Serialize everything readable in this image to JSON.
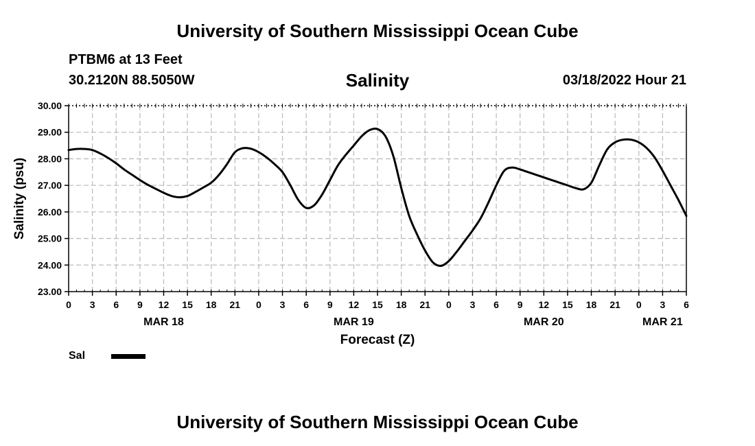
{
  "header": {
    "title": "University of Southern Mississippi Ocean Cube",
    "station": "PTBM6 at 13 Feet",
    "coords": "30.2120N  88.5050W",
    "subtitle": "Salinity",
    "datetime": "03/18/2022 Hour 21"
  },
  "footer": {
    "title": "University of Southern Mississippi Ocean Cube"
  },
  "legend": {
    "label": "Sal",
    "color": "#000000"
  },
  "chart_data": {
    "type": "line",
    "title": "Salinity",
    "xlabel": "Forecast (Z)",
    "ylabel": "Salinity (psu)",
    "ylim": [
      23,
      30
    ],
    "xlim": [
      0,
      78
    ],
    "x_unit": "hours from 00Z MAR 18",
    "yticks": [
      "23.00",
      "24.00",
      "25.00",
      "26.00",
      "27.00",
      "28.00",
      "29.00",
      "30.00"
    ],
    "xticks": [
      "0",
      "3",
      "6",
      "9",
      "12",
      "15",
      "18",
      "21",
      "0",
      "3",
      "6",
      "9",
      "12",
      "15",
      "18",
      "21",
      "0",
      "3",
      "6",
      "9",
      "12",
      "15",
      "18",
      "21",
      "0",
      "3",
      "6"
    ],
    "day_labels": [
      {
        "label": "MAR 18",
        "hour": 12
      },
      {
        "label": "MAR 19",
        "hour": 36
      },
      {
        "label": "MAR 20",
        "hour": 60
      },
      {
        "label": "MAR 21",
        "hour": 75
      }
    ],
    "grid": true,
    "series": [
      {
        "name": "Sal",
        "x": [
          0,
          1,
          2,
          3,
          4,
          5,
          6,
          7,
          8,
          9,
          10,
          11,
          12,
          13,
          14,
          15,
          16,
          17,
          18,
          19,
          20,
          21,
          22,
          23,
          24,
          25,
          26,
          27,
          28,
          29,
          30,
          31,
          32,
          33,
          34,
          35,
          36,
          37,
          38,
          39,
          40,
          41,
          42,
          43,
          44,
          45,
          46,
          47,
          48,
          49,
          50,
          51,
          52,
          53,
          54,
          55,
          56,
          57,
          58,
          59,
          60,
          61,
          62,
          63,
          64,
          65,
          66,
          67,
          68,
          69,
          70,
          71,
          72,
          73,
          74,
          75,
          76,
          77,
          78
        ],
        "values": [
          28.33,
          28.37,
          28.37,
          28.33,
          28.2,
          28.03,
          27.83,
          27.6,
          27.4,
          27.2,
          27.02,
          26.87,
          26.72,
          26.6,
          26.55,
          26.6,
          26.75,
          26.92,
          27.1,
          27.4,
          27.8,
          28.25,
          28.4,
          28.38,
          28.25,
          28.05,
          27.8,
          27.5,
          27.0,
          26.45,
          26.15,
          26.25,
          26.65,
          27.2,
          27.75,
          28.15,
          28.5,
          28.85,
          29.08,
          29.12,
          28.85,
          28.1,
          26.9,
          25.85,
          25.15,
          24.55,
          24.1,
          23.97,
          24.15,
          24.5,
          24.9,
          25.3,
          25.75,
          26.35,
          27.0,
          27.55,
          27.67,
          27.6,
          27.5,
          27.4,
          27.3,
          27.2,
          27.1,
          27.0,
          26.9,
          26.85,
          27.1,
          27.75,
          28.35,
          28.62,
          28.72,
          28.72,
          28.62,
          28.4,
          28.05,
          27.55,
          27.0,
          26.45,
          25.85
        ]
      }
    ]
  }
}
